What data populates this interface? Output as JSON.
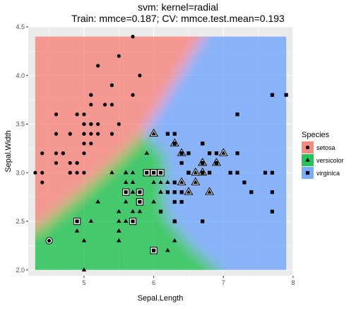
{
  "chart_data": {
    "type": "scatter",
    "title": "svm: kernel=radial",
    "subtitle": "Train: mmce=0.187; CV: mmce.test.mean=0.193",
    "xlabel": "Sepal.Length",
    "ylabel": "Sepal.Width",
    "xlim": [
      4.2,
      8.0
    ],
    "ylim": [
      1.94,
      4.5
    ],
    "x_ticks": [
      5,
      6,
      7,
      8
    ],
    "y_ticks": [
      2.0,
      2.5,
      3.0,
      3.5,
      4.0,
      4.5
    ],
    "x_tick_labels": [
      "5",
      "6",
      "7",
      "8"
    ],
    "y_tick_labels": [
      "2.0",
      "2.5",
      "3.0",
      "3.5",
      "4.0",
      "4.5"
    ],
    "legend": {
      "title": "Species",
      "position": "right",
      "items": [
        {
          "label": "setosa",
          "color": "#f8766d",
          "shape": "circle"
        },
        {
          "label": "versicolor",
          "color": "#00ba38",
          "shape": "triangle"
        },
        {
          "label": "virginica",
          "color": "#619cff",
          "shape": "square"
        }
      ]
    },
    "background": {
      "panel_color": "#ebebeb",
      "grid": true,
      "region_extent_x": [
        4.3,
        7.9
      ],
      "region_extent_y": [
        2.0,
        4.4
      ],
      "region_alpha": 0.7,
      "colors": {
        "setosa": "#f8766d",
        "versicolor": "#00ba38",
        "virginica": "#619cff"
      },
      "boundaries": {
        "setosa_versicolor": [
          [
            4.3,
            2.42
          ],
          [
            4.6,
            2.6
          ],
          [
            4.9,
            2.78
          ],
          [
            5.2,
            2.97
          ],
          [
            5.5,
            3.17
          ],
          [
            5.7,
            3.31
          ],
          [
            5.85,
            3.42
          ]
        ],
        "setosa_virginica": [
          [
            5.85,
            3.42
          ],
          [
            6.1,
            3.7
          ],
          [
            6.4,
            4.05
          ],
          [
            6.7,
            4.4
          ]
        ],
        "versicolor_virginica": [
          [
            5.85,
            3.42
          ],
          [
            6.15,
            3.2
          ],
          [
            6.2,
            3.0
          ],
          [
            6.15,
            2.8
          ],
          [
            6.2,
            2.55
          ],
          [
            6.55,
            2.25
          ],
          [
            6.95,
            2.0
          ]
        ]
      }
    },
    "series": [
      {
        "name": "setosa",
        "shape": "circle",
        "points": [
          [
            5.1,
            3.5
          ],
          [
            4.9,
            3.0
          ],
          [
            4.7,
            3.2
          ],
          [
            4.6,
            3.1
          ],
          [
            5.0,
            3.6
          ],
          [
            5.4,
            3.9
          ],
          [
            4.6,
            3.4
          ],
          [
            5.0,
            3.4
          ],
          [
            4.4,
            2.9
          ],
          [
            4.9,
            3.1
          ],
          [
            5.4,
            3.7
          ],
          [
            4.8,
            3.4
          ],
          [
            4.8,
            3.0
          ],
          [
            4.3,
            3.0
          ],
          [
            5.8,
            4.0
          ],
          [
            5.7,
            4.4
          ],
          [
            5.4,
            3.9
          ],
          [
            5.1,
            3.5
          ],
          [
            5.7,
            3.8
          ],
          [
            5.1,
            3.8
          ],
          [
            5.4,
            3.4
          ],
          [
            5.1,
            3.7
          ],
          [
            4.6,
            3.6
          ],
          [
            5.1,
            3.3
          ],
          [
            4.8,
            3.4
          ],
          [
            5.0,
            3.0
          ],
          [
            5.0,
            3.4
          ],
          [
            5.2,
            3.5
          ],
          [
            5.2,
            3.4
          ],
          [
            4.7,
            3.2
          ],
          [
            4.8,
            3.1
          ],
          [
            5.4,
            3.4
          ],
          [
            5.2,
            4.1
          ],
          [
            5.5,
            4.2
          ],
          [
            4.9,
            3.1
          ],
          [
            5.0,
            3.2
          ],
          [
            5.5,
            3.5
          ],
          [
            4.9,
            3.6
          ],
          [
            4.4,
            3.0
          ],
          [
            5.1,
            3.4
          ],
          [
            5.0,
            3.5
          ],
          [
            4.5,
            2.3
          ],
          [
            4.4,
            3.2
          ],
          [
            5.0,
            3.5
          ],
          [
            5.1,
            3.8
          ],
          [
            4.8,
            3.0
          ],
          [
            5.1,
            3.8
          ],
          [
            4.6,
            3.2
          ],
          [
            5.3,
            3.7
          ],
          [
            5.0,
            3.3
          ]
        ]
      },
      {
        "name": "versicolor",
        "shape": "triangle",
        "points": [
          [
            7.0,
            3.2
          ],
          [
            6.4,
            3.2
          ],
          [
            6.9,
            3.1
          ],
          [
            5.5,
            2.3
          ],
          [
            6.5,
            2.8
          ],
          [
            5.7,
            2.8
          ],
          [
            6.3,
            3.3
          ],
          [
            4.9,
            2.4
          ],
          [
            6.6,
            2.9
          ],
          [
            5.2,
            2.7
          ],
          [
            5.0,
            2.0
          ],
          [
            5.9,
            3.0
          ],
          [
            6.0,
            2.2
          ],
          [
            6.1,
            2.9
          ],
          [
            5.6,
            2.9
          ],
          [
            6.7,
            3.1
          ],
          [
            5.6,
            3.0
          ],
          [
            5.8,
            2.7
          ],
          [
            6.2,
            2.2
          ],
          [
            5.6,
            2.5
          ],
          [
            5.9,
            3.2
          ],
          [
            6.1,
            2.8
          ],
          [
            6.3,
            2.5
          ],
          [
            6.1,
            2.8
          ],
          [
            6.4,
            2.9
          ],
          [
            6.6,
            3.0
          ],
          [
            6.8,
            2.8
          ],
          [
            6.7,
            3.0
          ],
          [
            6.0,
            2.9
          ],
          [
            5.7,
            2.6
          ],
          [
            5.5,
            2.4
          ],
          [
            5.5,
            2.4
          ],
          [
            5.8,
            2.7
          ],
          [
            6.0,
            2.7
          ],
          [
            5.4,
            3.0
          ],
          [
            6.0,
            3.4
          ],
          [
            6.7,
            3.1
          ],
          [
            6.3,
            2.3
          ],
          [
            5.6,
            3.0
          ],
          [
            5.5,
            2.5
          ],
          [
            5.5,
            2.6
          ],
          [
            6.1,
            3.0
          ],
          [
            5.8,
            2.6
          ],
          [
            5.0,
            2.3
          ],
          [
            5.6,
            2.7
          ],
          [
            5.7,
            3.0
          ],
          [
            5.7,
            2.9
          ],
          [
            6.2,
            2.9
          ],
          [
            5.1,
            2.5
          ],
          [
            5.7,
            2.8
          ]
        ]
      },
      {
        "name": "virginica",
        "shape": "square",
        "points": [
          [
            6.3,
            3.3
          ],
          [
            5.8,
            2.7
          ],
          [
            7.1,
            3.0
          ],
          [
            6.3,
            2.9
          ],
          [
            6.5,
            3.0
          ],
          [
            7.6,
            3.0
          ],
          [
            4.9,
            2.5
          ],
          [
            7.3,
            2.9
          ],
          [
            6.7,
            2.5
          ],
          [
            7.2,
            3.6
          ],
          [
            6.5,
            3.2
          ],
          [
            6.4,
            2.7
          ],
          [
            6.8,
            3.0
          ],
          [
            5.7,
            2.5
          ],
          [
            5.8,
            2.8
          ],
          [
            6.4,
            3.2
          ],
          [
            6.5,
            3.0
          ],
          [
            7.7,
            3.8
          ],
          [
            7.7,
            2.6
          ],
          [
            6.0,
            2.2
          ],
          [
            6.9,
            3.2
          ],
          [
            5.6,
            2.8
          ],
          [
            7.7,
            2.8
          ],
          [
            6.3,
            2.7
          ],
          [
            6.7,
            3.3
          ],
          [
            7.2,
            3.2
          ],
          [
            6.2,
            2.8
          ],
          [
            6.1,
            3.0
          ],
          [
            6.4,
            2.8
          ],
          [
            7.2,
            3.0
          ],
          [
            7.4,
            2.8
          ],
          [
            7.9,
            3.8
          ],
          [
            6.4,
            2.8
          ],
          [
            6.3,
            2.8
          ],
          [
            6.1,
            2.6
          ],
          [
            7.7,
            3.0
          ],
          [
            6.3,
            3.4
          ],
          [
            6.4,
            3.1
          ],
          [
            6.0,
            3.0
          ],
          [
            6.9,
            3.1
          ],
          [
            6.7,
            3.1
          ],
          [
            6.9,
            3.1
          ],
          [
            5.8,
            2.7
          ],
          [
            6.8,
            3.2
          ],
          [
            6.7,
            3.3
          ],
          [
            6.7,
            3.0
          ],
          [
            6.3,
            2.5
          ],
          [
            6.5,
            3.0
          ],
          [
            6.2,
            3.4
          ],
          [
            5.9,
            3.0
          ]
        ]
      }
    ],
    "misclassified": {
      "versicolor": [
        [
          7.0,
          3.2
        ],
        [
          6.4,
          3.2
        ],
        [
          6.9,
          3.1
        ],
        [
          6.5,
          2.8
        ],
        [
          6.3,
          3.3
        ],
        [
          6.6,
          2.9
        ],
        [
          6.7,
          3.1
        ],
        [
          6.4,
          2.9
        ],
        [
          6.6,
          3.0
        ],
        [
          6.8,
          2.8
        ],
        [
          6.7,
          3.0
        ],
        [
          6.0,
          3.4
        ],
        [
          6.7,
          3.1
        ]
      ],
      "virginica": [
        [
          4.9,
          2.5
        ],
        [
          5.7,
          2.5
        ],
        [
          5.8,
          2.8
        ],
        [
          6.0,
          2.2
        ],
        [
          5.6,
          2.8
        ],
        [
          6.1,
          3.0
        ],
        [
          6.0,
          3.0
        ],
        [
          5.8,
          2.7
        ],
        [
          5.9,
          3.0
        ]
      ],
      "setosa": [
        [
          4.5,
          2.3
        ]
      ]
    }
  }
}
